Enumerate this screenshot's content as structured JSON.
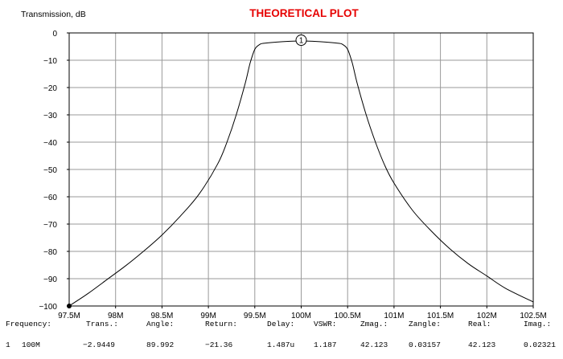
{
  "chart_data": {
    "type": "line",
    "title": "THEORETICAL PLOT",
    "ylabel": "Transmission, dB",
    "xlabel": "",
    "xlim": [
      97500000,
      102500000
    ],
    "ylim": [
      -100,
      0
    ],
    "grid": true,
    "x_ticks": [
      97500000,
      98000000,
      98500000,
      99000000,
      99500000,
      100000000,
      100500000,
      101000000,
      101500000,
      102000000,
      102500000
    ],
    "x_tick_labels": [
      "97.5M",
      "98M",
      "98.5M",
      "99M",
      "99.5M",
      "100M",
      "100.5M",
      "101M",
      "101.5M",
      "102M",
      "102.5M"
    ],
    "y_ticks": [
      0,
      -10,
      -20,
      -30,
      -40,
      -50,
      -60,
      -70,
      -80,
      -90,
      -100
    ],
    "y_tick_labels": [
      "0",
      "−10",
      "−20",
      "−30",
      "−40",
      "−50",
      "−60",
      "−70",
      "−80",
      "−90",
      "−100"
    ],
    "series": [
      {
        "color": "#000000",
        "x": [
          97500000,
          97700000,
          97900000,
          98100000,
          98300000,
          98500000,
          98700000,
          98900000,
          99100000,
          99200000,
          99300000,
          99400000,
          99450000,
          99500000,
          99550000,
          99600000,
          99800000,
          100000000,
          100200000,
          100400000,
          100450000,
          100500000,
          100550000,
          100600000,
          100700000,
          100800000,
          100900000,
          101000000,
          101200000,
          101400000,
          101600000,
          101800000,
          102000000,
          102200000,
          102500000
        ],
        "y": [
          -100,
          -95.5,
          -90.5,
          -85.5,
          -80,
          -74,
          -67,
          -59,
          -48,
          -40,
          -30,
          -18,
          -11,
          -6,
          -4.3,
          -3.8,
          -3.2,
          -2.9449,
          -3.2,
          -3.8,
          -4.3,
          -6,
          -11,
          -18,
          -30,
          -40,
          -48.5,
          -55,
          -65,
          -72.5,
          -79,
          -84.5,
          -89,
          -93.5,
          -98.5
        ]
      }
    ],
    "markers": [
      {
        "label": "1",
        "x": 100000000,
        "y": -2.9449
      }
    ]
  },
  "readout": {
    "headers": [
      "Frequency:",
      "Trans.:",
      "Angle:",
      "Return:",
      "Delay:",
      "VSWR:",
      "Zmag.:",
      "Zangle:",
      "Real:",
      "Imag.:"
    ],
    "rows": [
      {
        "index": "1",
        "values": [
          "100M",
          "−2.9449",
          "89.992",
          "−21.36",
          "1.487u",
          "1.187",
          "42.123",
          "0.03157",
          "42.123",
          "0.02321"
        ]
      }
    ]
  }
}
